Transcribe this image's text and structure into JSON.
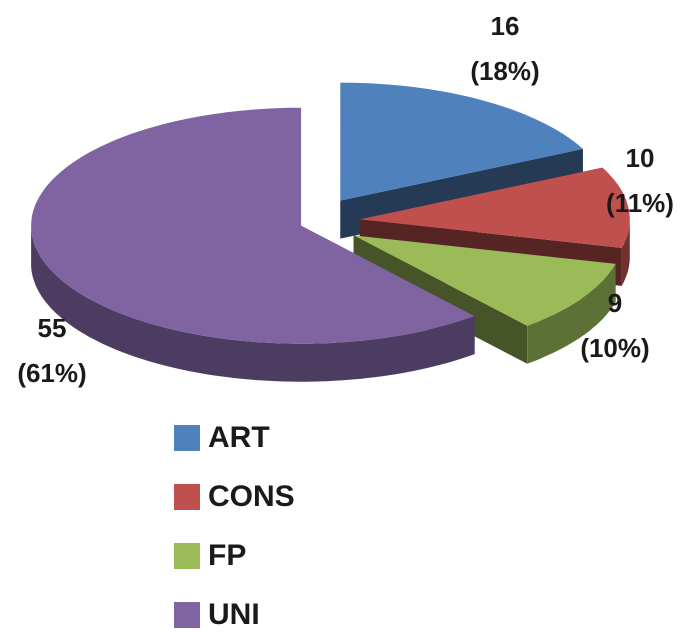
{
  "chart_data": {
    "type": "pie",
    "categories": [
      "ART",
      "CONS",
      "FP",
      "UNI"
    ],
    "values": [
      16,
      10,
      9,
      55
    ],
    "percents": [
      18,
      11,
      10,
      61
    ],
    "percent_labels": [
      "(18%)",
      "(11%)",
      "(10%)",
      "(61%)"
    ],
    "colors": [
      "#4f81bd",
      "#c0504d",
      "#9bbb59",
      "#8064a2"
    ],
    "legend": "bottom"
  }
}
